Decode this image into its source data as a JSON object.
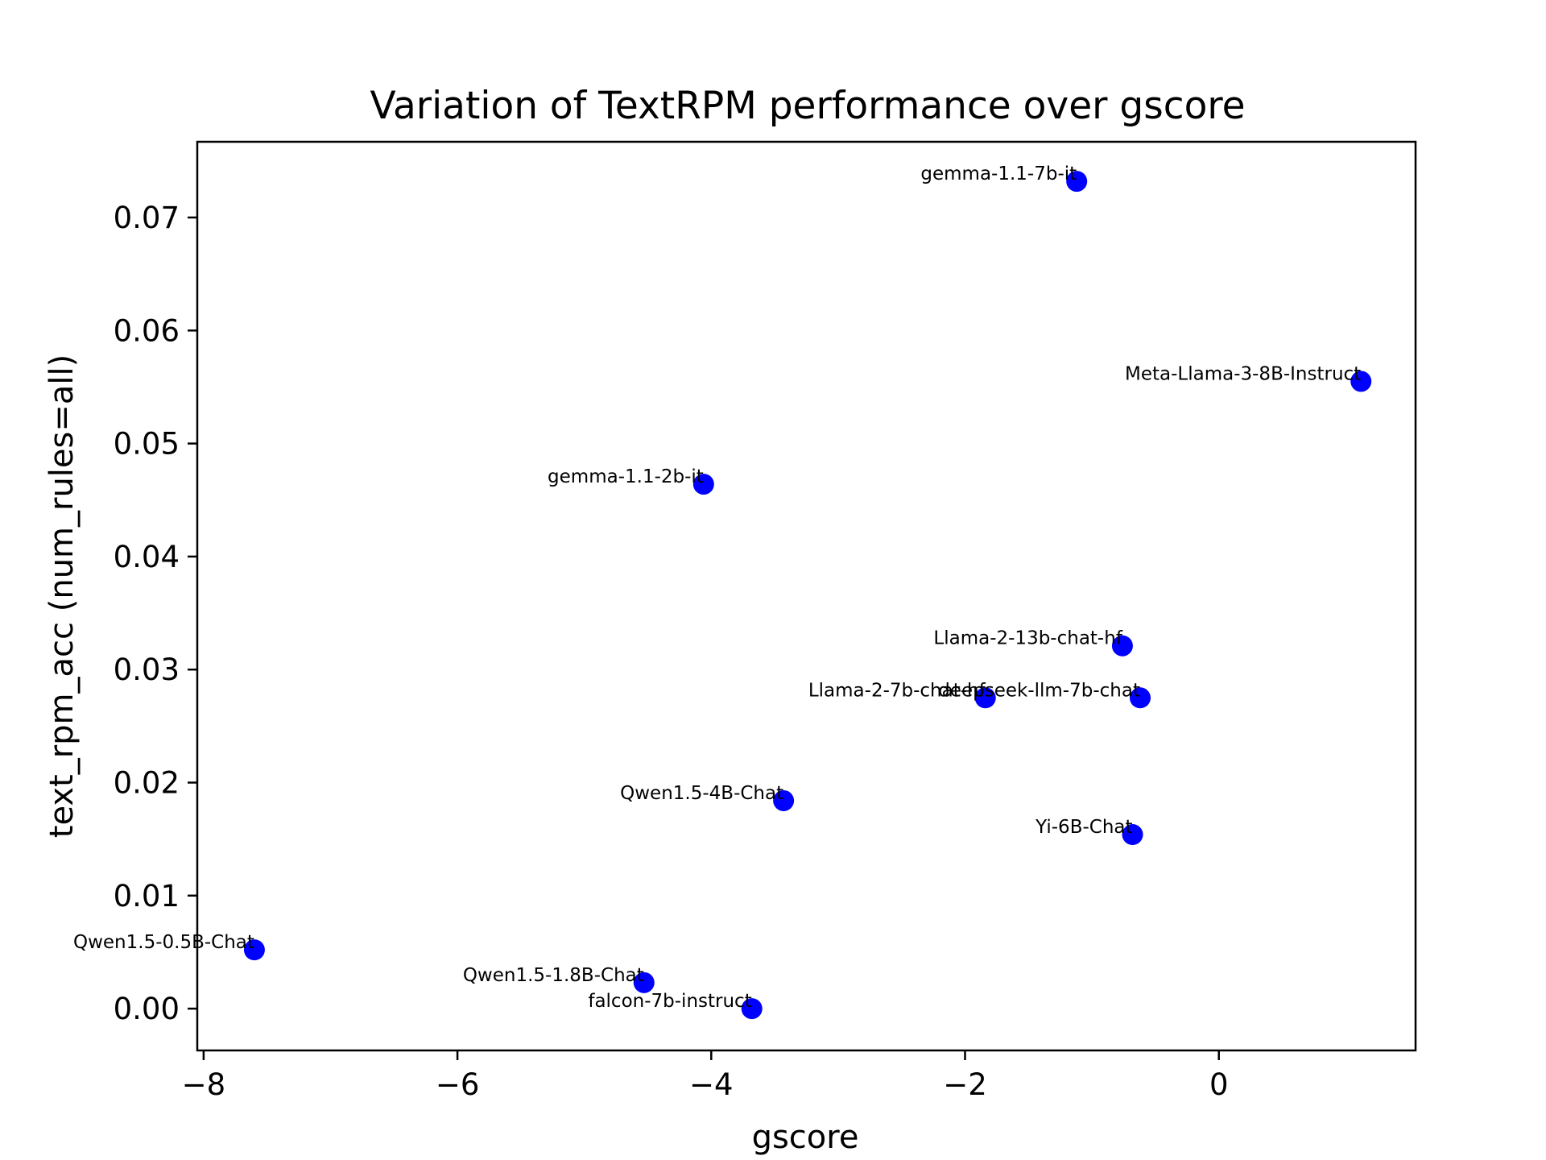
{
  "chart_data": {
    "type": "scatter",
    "title": "Variation of TextRPM performance over gscore",
    "xlabel": "gscore",
    "ylabel": "text_rpm_acc (num_rules=all)",
    "xlim": [
      -8.05,
      1.55
    ],
    "ylim": [
      -0.0037,
      0.0767
    ],
    "xticks": [
      -8,
      -6,
      -4,
      -2,
      0
    ],
    "xtick_labels": [
      "−8",
      "−6",
      "−4",
      "−2",
      "0"
    ],
    "yticks": [
      0.0,
      0.01,
      0.02,
      0.03,
      0.04,
      0.05,
      0.06,
      0.07
    ],
    "ytick_labels": [
      "0.00",
      "0.01",
      "0.02",
      "0.03",
      "0.04",
      "0.05",
      "0.06",
      "0.07"
    ],
    "grid": false,
    "marker_color": "#0000ff",
    "points": [
      {
        "label": "gemma-1.1-7b-it",
        "x": -1.12,
        "y": 0.0732
      },
      {
        "label": "Meta-Llama-3-8B-Instruct",
        "x": 1.12,
        "y": 0.0555
      },
      {
        "label": "gemma-1.1-2b-it",
        "x": -4.06,
        "y": 0.0464
      },
      {
        "label": "Llama-2-13b-chat-hf",
        "x": -0.76,
        "y": 0.0321
      },
      {
        "label": "Llama-2-7b-chat-hf",
        "x": -1.84,
        "y": 0.0275
      },
      {
        "label": "deepseek-llm-7b-chat",
        "x": -0.62,
        "y": 0.0275
      },
      {
        "label": "Qwen1.5-4B-Chat",
        "x": -3.43,
        "y": 0.0184
      },
      {
        "label": "Yi-6B-Chat",
        "x": -0.68,
        "y": 0.0154
      },
      {
        "label": "Qwen1.5-0.5B-Chat",
        "x": -7.6,
        "y": 0.0052
      },
      {
        "label": "Qwen1.5-1.8B-Chat",
        "x": -4.53,
        "y": 0.0023
      },
      {
        "label": "falcon-7b-instruct",
        "x": -3.68,
        "y": 0.0
      }
    ]
  }
}
